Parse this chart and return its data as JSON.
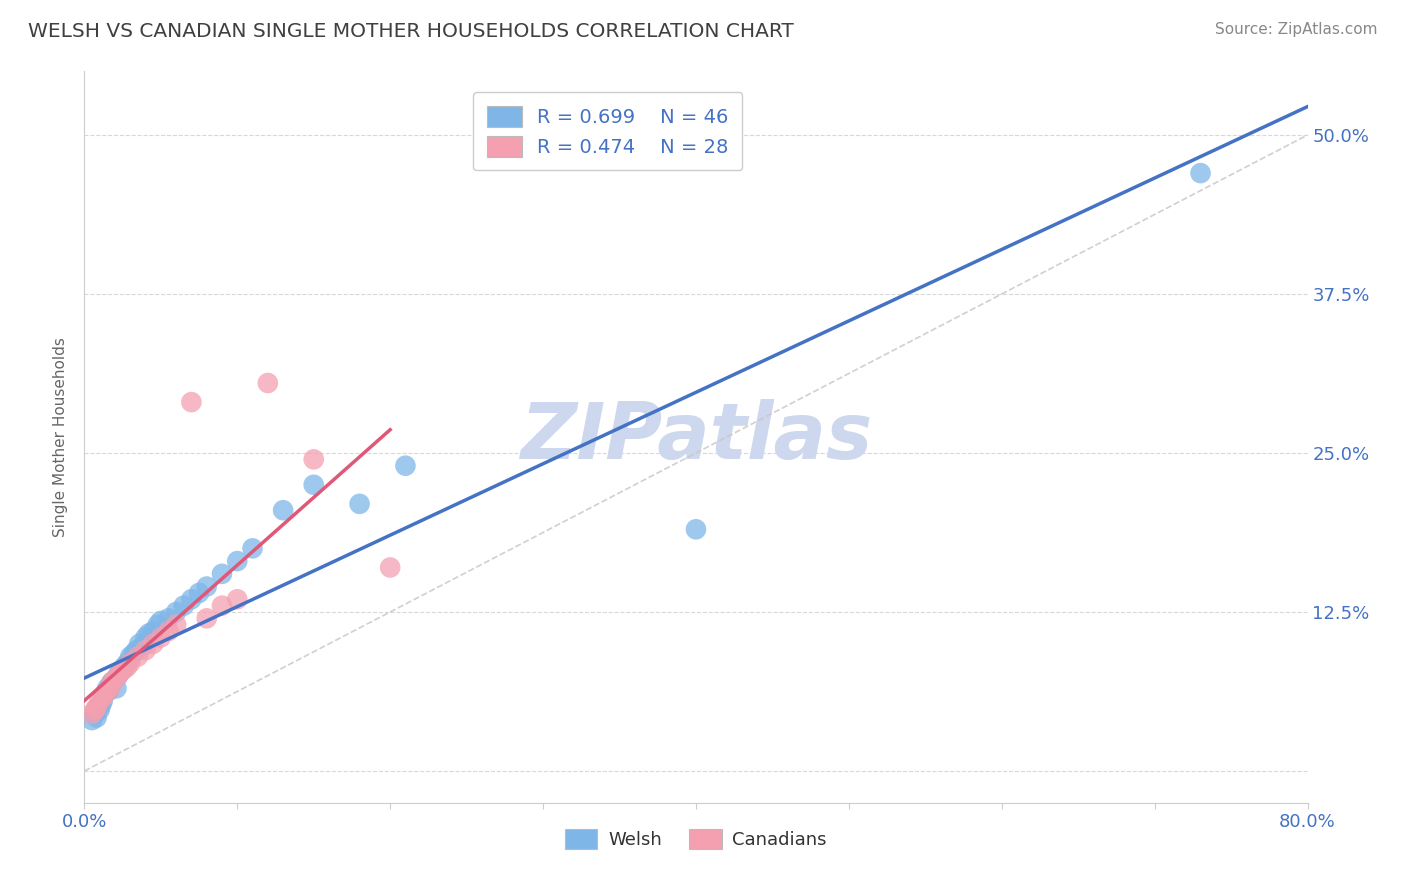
{
  "title": "WELSH VS CANADIAN SINGLE MOTHER HOUSEHOLDS CORRELATION CHART",
  "source_text": "Source: ZipAtlas.com",
  "ylabel": "Single Mother Households",
  "xlim": [
    0.0,
    0.8
  ],
  "ylim": [
    -0.025,
    0.55
  ],
  "welsh_color": "#7EB6E8",
  "canadian_color": "#F4A0B0",
  "welsh_line_color": "#4472C4",
  "canadian_line_color": "#E05878",
  "ref_line_color": "#C8C8C8",
  "legend_r_welsh": "R = 0.699",
  "legend_n_welsh": "N = 46",
  "legend_r_canadian": "R = 0.474",
  "legend_n_canadian": "N = 28",
  "watermark": "ZIPatlas",
  "watermark_color": "#CDD8EE",
  "title_color": "#404040",
  "axis_color": "#4472C4",
  "axis_tick_color": "#4472C4",
  "legend_label_welsh": "Welsh",
  "legend_label_canadian": "Canadians",
  "grid_color": "#D8D8D8",
  "background_color": "#FFFFFF",
  "welsh_x": [
    0.005,
    0.007,
    0.008,
    0.009,
    0.01,
    0.011,
    0.012,
    0.012,
    0.013,
    0.014,
    0.015,
    0.016,
    0.017,
    0.018,
    0.02,
    0.021,
    0.022,
    0.023,
    0.025,
    0.026,
    0.028,
    0.03,
    0.032,
    0.034,
    0.036,
    0.038,
    0.04,
    0.042,
    0.045,
    0.048,
    0.05,
    0.055,
    0.06,
    0.065,
    0.07,
    0.075,
    0.08,
    0.09,
    0.1,
    0.11,
    0.13,
    0.15,
    0.18,
    0.21,
    0.4,
    0.73
  ],
  "welsh_y": [
    0.04,
    0.045,
    0.042,
    0.05,
    0.048,
    0.052,
    0.055,
    0.058,
    0.06,
    0.062,
    0.065,
    0.063,
    0.068,
    0.07,
    0.072,
    0.065,
    0.075,
    0.078,
    0.08,
    0.082,
    0.085,
    0.09,
    0.092,
    0.095,
    0.1,
    0.098,
    0.105,
    0.108,
    0.11,
    0.115,
    0.118,
    0.12,
    0.125,
    0.13,
    0.135,
    0.14,
    0.145,
    0.155,
    0.165,
    0.175,
    0.205,
    0.225,
    0.21,
    0.24,
    0.19,
    0.47
  ],
  "canadian_x": [
    0.005,
    0.007,
    0.008,
    0.01,
    0.012,
    0.013,
    0.015,
    0.017,
    0.018,
    0.02,
    0.022,
    0.024,
    0.026,
    0.028,
    0.03,
    0.035,
    0.04,
    0.045,
    0.05,
    0.055,
    0.06,
    0.07,
    0.08,
    0.09,
    0.1,
    0.12,
    0.15,
    0.2
  ],
  "canadian_y": [
    0.045,
    0.048,
    0.05,
    0.055,
    0.058,
    0.06,
    0.063,
    0.065,
    0.07,
    0.072,
    0.075,
    0.078,
    0.08,
    0.082,
    0.085,
    0.09,
    0.095,
    0.1,
    0.105,
    0.11,
    0.115,
    0.29,
    0.12,
    0.13,
    0.135,
    0.305,
    0.245,
    0.16
  ]
}
